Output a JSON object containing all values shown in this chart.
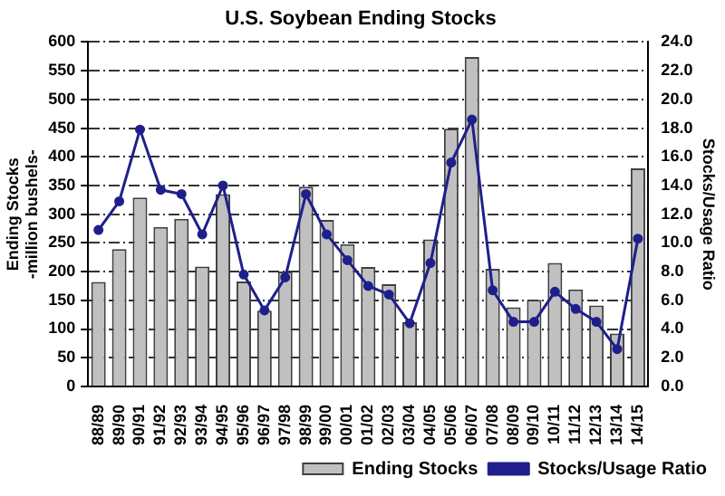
{
  "chart_data": {
    "type": "bar",
    "title": "U.S. Soybean Ending Stocks",
    "ylabel": "Ending Stocks\n-million bushels-",
    "y2label": "Stocks/Usage Ratio",
    "categories": [
      "88/89",
      "89/90",
      "90/91",
      "91/92",
      "92/93",
      "93/94",
      "94/95",
      "95/96",
      "96/97",
      "97/98",
      "98/99",
      "99/00",
      "00/01",
      "01/02",
      "02/03",
      "03/04",
      "04/05",
      "05/06",
      "06/07",
      "07/08",
      "08/09",
      "09/10",
      "10/11",
      "11/12",
      "12/13",
      "13/14",
      "14/15"
    ],
    "series": [
      {
        "name": "Ending Stocks",
        "color": "#c0c0c0",
        "values": [
          182,
          239,
          329,
          278,
          292,
          209,
          335,
          183,
          132,
          200,
          348,
          290,
          248,
          208,
          178,
          112,
          256,
          449,
          574,
          205,
          138,
          151,
          215,
          169,
          141,
          92,
          380
        ]
      },
      {
        "name": "Stocks/Usage Ratio",
        "type": "line",
        "axis": "y2",
        "color": "#1f1f8c",
        "values": [
          10.9,
          12.9,
          17.9,
          13.7,
          13.4,
          10.6,
          14.0,
          7.8,
          5.3,
          7.6,
          13.4,
          10.6,
          8.8,
          7.0,
          6.4,
          4.4,
          8.6,
          15.6,
          18.6,
          6.7,
          4.5,
          4.5,
          6.6,
          5.4,
          4.5,
          2.6,
          10.3
        ]
      }
    ],
    "ylim": [
      0,
      600
    ],
    "yticks": [
      0,
      50,
      100,
      150,
      200,
      250,
      300,
      350,
      400,
      450,
      500,
      550,
      600
    ],
    "y2lim": [
      0,
      24
    ],
    "y2ticks": [
      {
        "value": 0,
        "label": "0.0"
      },
      {
        "value": 2,
        "label": "2.0"
      },
      {
        "value": 4,
        "label": "4.0"
      },
      {
        "value": 6,
        "label": "6.0"
      },
      {
        "value": 8,
        "label": "8.0"
      },
      {
        "value": 10,
        "label": "10.0"
      },
      {
        "value": 12,
        "label": "12.0"
      },
      {
        "value": 14,
        "label": "14.0"
      },
      {
        "value": 16,
        "label": "16.0"
      },
      {
        "value": 18,
        "label": "18.0"
      },
      {
        "value": 20,
        "label": "20.0"
      },
      {
        "value": 22,
        "label": "22.0"
      },
      {
        "value": 24,
        "label": "24.0"
      }
    ],
    "grid": "y",
    "legend": "bottom",
    "marker": "circle",
    "line_style": "solid"
  }
}
